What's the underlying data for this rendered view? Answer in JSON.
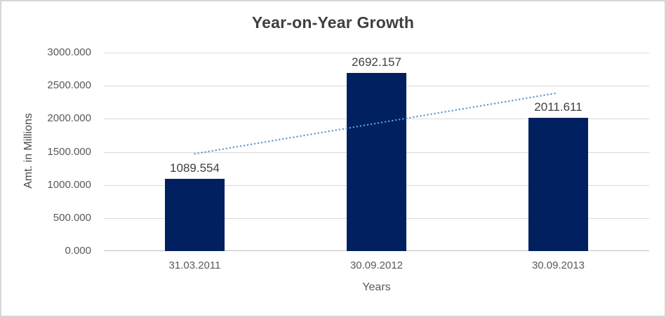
{
  "chart_data": {
    "type": "bar",
    "title": "Year-on-Year Growth",
    "xlabel": "Years",
    "ylabel": "Amt. in Millions",
    "categories": [
      "31.03.2011",
      "30.09.2012",
      "30.09.2013"
    ],
    "values": [
      1089.554,
      2692.157,
      2011.611
    ],
    "data_labels": [
      "1089.554",
      "2692.157",
      "2011.611"
    ],
    "ylim": [
      0,
      3000
    ],
    "yticks": [
      0,
      500,
      1000,
      1500,
      2000,
      2500,
      3000
    ],
    "ytick_labels": [
      "0.000",
      "500.000",
      "1000.000",
      "1500.000",
      "2000.000",
      "2500.000",
      "3000.000"
    ],
    "grid": true,
    "legend": "none",
    "trendline": {
      "type": "linear",
      "style": "dotted",
      "color": "#5B9BD5",
      "start_value": 1470.07,
      "end_value": 2392.13
    },
    "colors": {
      "bar": "#002060",
      "trendline": "#5B9BD5",
      "gridline": "#D9D9D9",
      "axis_line": "#BFBFBF",
      "title_text": "#3F3F3F",
      "tick_text": "#595959",
      "label_text": "#404040",
      "frame_border": "#D6D6D6",
      "background": "#FFFFFF"
    }
  }
}
